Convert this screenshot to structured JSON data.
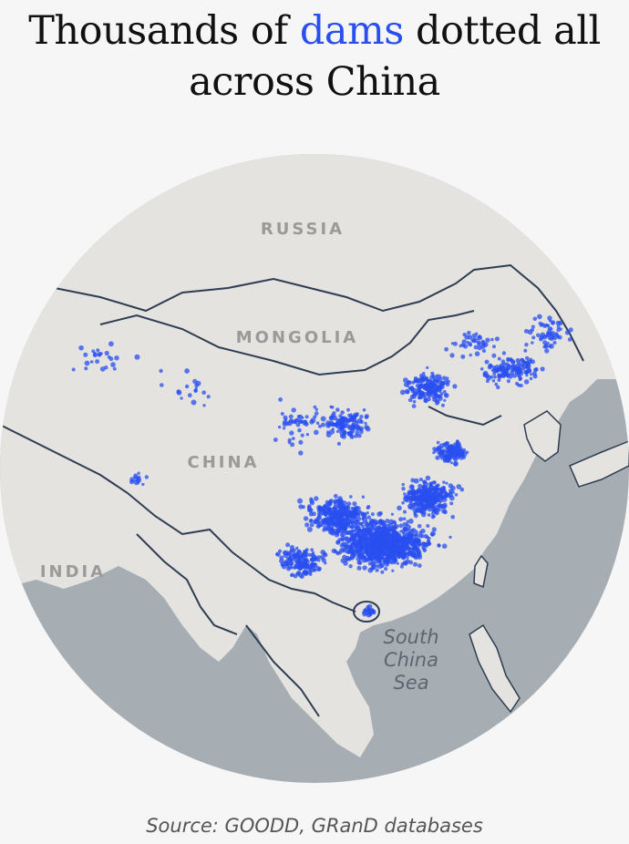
{
  "headline": {
    "before": "Thousands of ",
    "highlight": "dams",
    "after": " dotted all across China",
    "highlight_color": "#2a4ff0"
  },
  "map": {
    "labels": {
      "russia": "RUSSIA",
      "mongolia": "MONGOLIA",
      "china": "CHINA",
      "india": "INDIA",
      "sea_line1": "South",
      "sea_line2": "China",
      "sea_line3": "Sea"
    },
    "colors": {
      "land": "#e4e3e0",
      "water": "#a6aeb4",
      "border": "#2f3d52",
      "dam": "#2a4ff0"
    }
  },
  "source": "Source: GOODD, GRanD databases"
}
